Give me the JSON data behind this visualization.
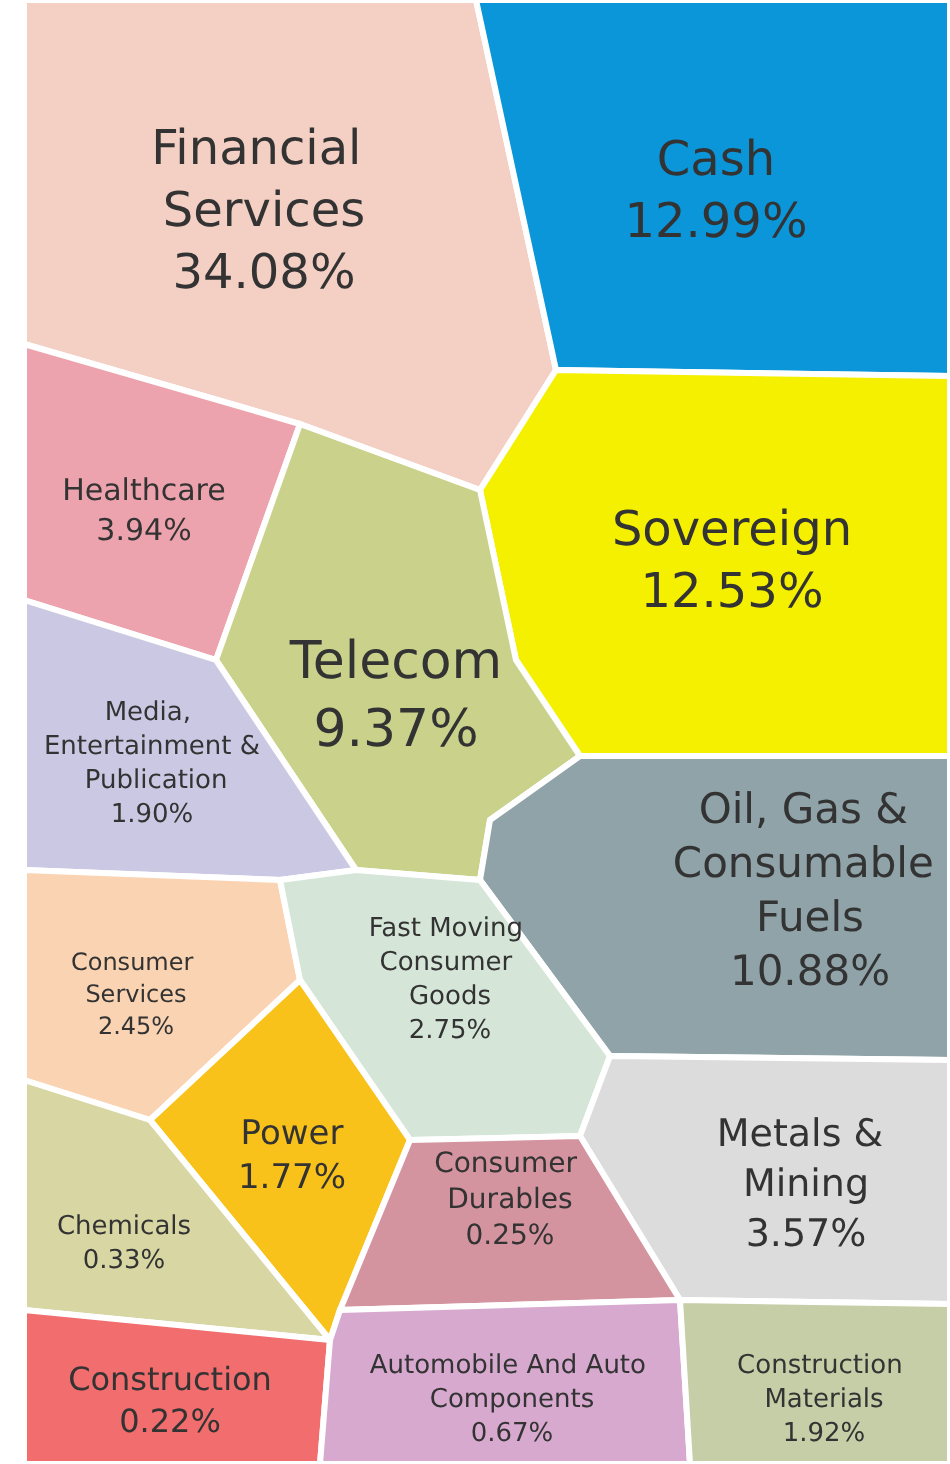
{
  "chart_data": {
    "type": "other",
    "categories": [
      "Financial Services",
      "Cash",
      "Healthcare",
      "Sovereign",
      "Telecom",
      "Media, Entertainment & Publication",
      "Oil, Gas & Consumable Fuels",
      "Consumer Services",
      "Fast Moving Consumer Goods",
      "Metals & Mining",
      "Power",
      "Consumer Durables",
      "Chemicals",
      "Construction",
      "Automobile And Auto Components",
      "Construction Materials"
    ],
    "values": [
      34.08,
      12.99,
      3.94,
      12.53,
      9.37,
      1.9,
      10.88,
      2.45,
      2.75,
      3.57,
      1.77,
      0.25,
      0.33,
      0.22,
      0.67,
      1.92
    ],
    "value_labels": [
      "34.08%",
      "12.99%",
      "3.94%",
      "12.53%",
      "9.37%",
      "1.90%",
      "10.88%",
      "2.45%",
      "2.75%",
      "3.57%",
      "1.77%",
      "0.25%",
      "0.33%",
      "0.22%",
      "0.67%",
      "1.92%"
    ],
    "colors": [
      "#f4cfc3",
      "#0a96d8",
      "#eda3ad",
      "#f5f000",
      "#c9d18a",
      "#cbc8e3",
      "#8fa3a8",
      "#f9d3b2",
      "#d5e6d8",
      "#dcdcdc",
      "#f8c21a",
      "#d4949f",
      "#d8d6a3",
      "#f26d6d",
      "#d7a9cf",
      "#c5cea6"
    ]
  }
}
